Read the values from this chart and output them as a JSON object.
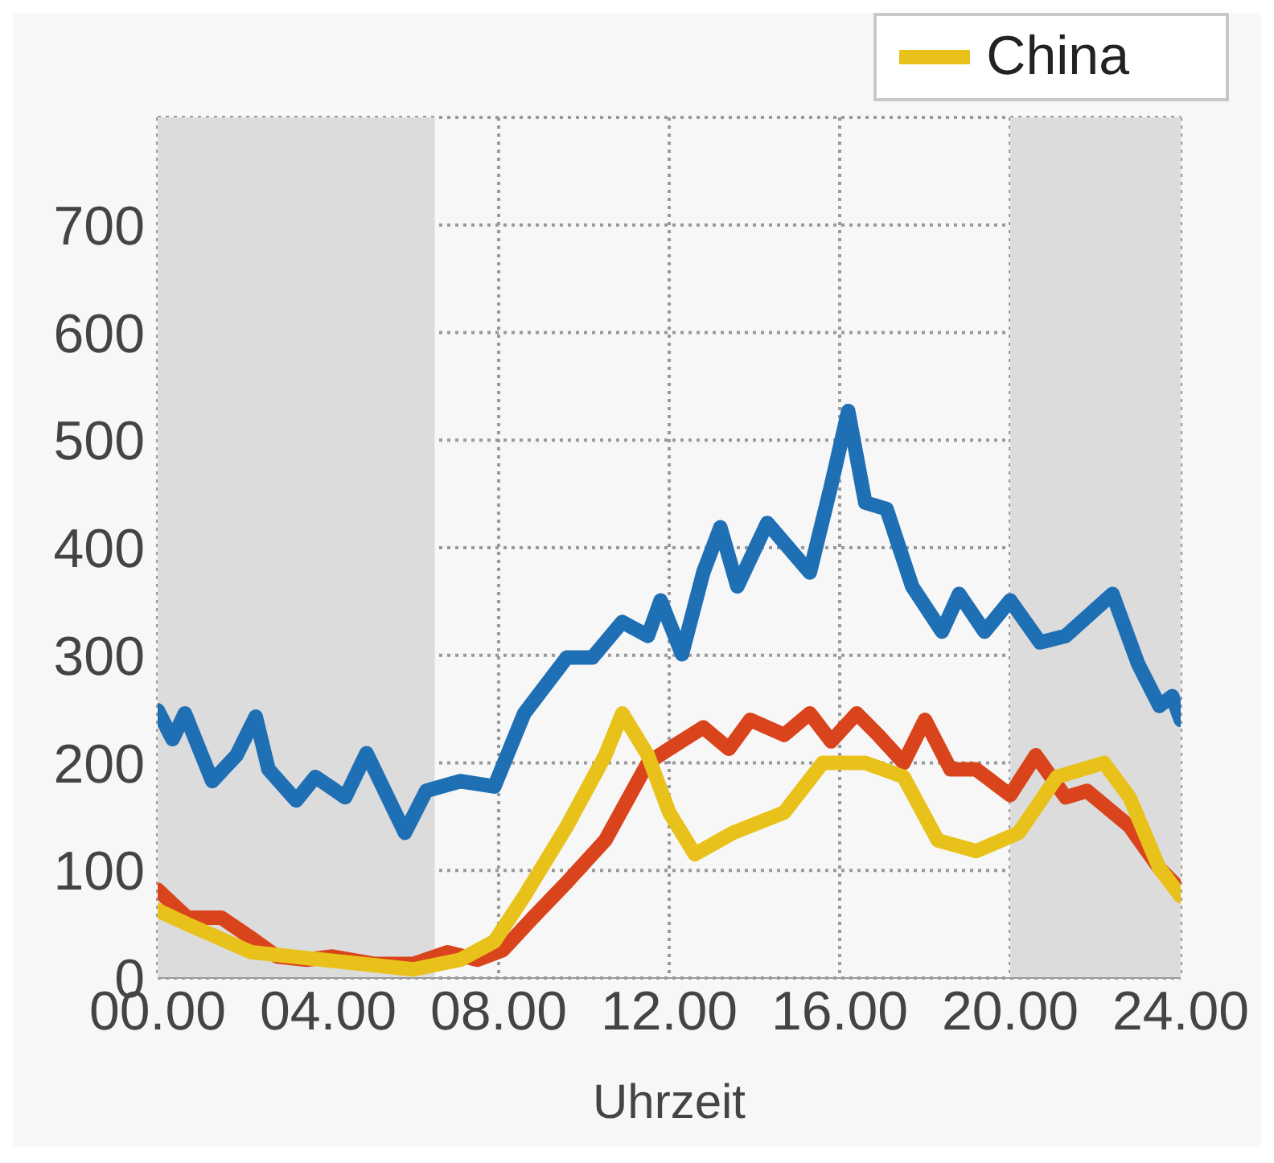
{
  "chart_data": {
    "type": "line",
    "xlabel": "Uhrzeit",
    "xlim": [
      0,
      24
    ],
    "xticks": [
      {
        "value": 0,
        "label": "00.00"
      },
      {
        "value": 4,
        "label": "04.00"
      },
      {
        "value": 8,
        "label": "08.00"
      },
      {
        "value": 12,
        "label": "12.00"
      },
      {
        "value": 16,
        "label": "16.00"
      },
      {
        "value": 20,
        "label": "20.00"
      },
      {
        "value": 24,
        "label": "24.00"
      }
    ],
    "ylim": [
      0,
      800
    ],
    "yticks": [
      0,
      100,
      200,
      300,
      400,
      500,
      600,
      700,
      {
        "value": 800,
        "label": null
      }
    ],
    "grid": true,
    "legend": "top right",
    "line_style": "solid",
    "marker": "none",
    "bands": [
      {
        "axis": "x",
        "from": 0,
        "to": 6.5,
        "color": "#dcdcdc"
      },
      {
        "axis": "x",
        "from": 20,
        "to": 24,
        "color": "#dcdcdc"
      }
    ],
    "series": [
      {
        "color": "#1f6fb5",
        "x": [
          0,
          0.35,
          0.64,
          1.28,
          1.85,
          2.3,
          2.6,
          3.25,
          3.7,
          4.4,
          4.9,
          5.8,
          6.3,
          7.1,
          7.9,
          8.6,
          9.6,
          10.2,
          10.9,
          11.5,
          11.8,
          12.3,
          12.8,
          13.2,
          13.6,
          14.3,
          15.3,
          15.8,
          16.2,
          16.6,
          17.1,
          17.7,
          18.4,
          18.8,
          19.4,
          20.0,
          20.7,
          21.3,
          22.4,
          23.0,
          23.5,
          23.8,
          24
        ],
        "values": [
          249,
          222,
          246,
          183,
          207,
          243,
          194,
          165,
          187,
          168,
          209,
          135,
          174,
          183,
          178,
          246,
          298,
          298,
          331,
          318,
          351,
          301,
          377,
          419,
          364,
          423,
          377,
          458,
          527,
          442,
          436,
          364,
          322,
          357,
          322,
          351,
          312,
          318,
          357,
          292,
          253,
          262,
          240
        ]
      },
      {
        "color": "#d9441c",
        "x": [
          0,
          0.7,
          1.5,
          2.2,
          2.8,
          3.5,
          4.1,
          5.1,
          6.0,
          6.8,
          7.5,
          8.1,
          8.8,
          9.6,
          10.5,
          11.5,
          12.0,
          12.8,
          13.4,
          13.9,
          14.7,
          15.3,
          15.8,
          16.4,
          16.9,
          17.5,
          18.0,
          18.6,
          19.2,
          20.0,
          20.6,
          21.3,
          21.8,
          22.8,
          23.5,
          24
        ],
        "values": [
          82,
          56,
          56,
          37,
          20,
          17,
          20,
          13,
          13,
          24,
          17,
          26,
          56,
          89,
          128,
          200,
          213,
          233,
          213,
          240,
          226,
          246,
          220,
          246,
          226,
          200,
          240,
          194,
          194,
          170,
          207,
          168,
          174,
          141,
          102,
          82
        ]
      },
      {
        "name": "China",
        "color": "#e8c21a",
        "x": [
          0,
          0.7,
          2.2,
          6.0,
          7.1,
          7.9,
          8.6,
          9.6,
          10.5,
          10.9,
          11.5,
          12.0,
          12.6,
          13.5,
          14.7,
          15.6,
          16.6,
          17.5,
          18.3,
          19.2,
          20.2,
          21.1,
          22.2,
          22.8,
          23.5,
          24
        ],
        "values": [
          63,
          50,
          24,
          8,
          17,
          34,
          76,
          141,
          207,
          246,
          207,
          154,
          115,
          135,
          154,
          200,
          200,
          187,
          128,
          118,
          135,
          187,
          200,
          168,
          102,
          76
        ]
      }
    ]
  }
}
